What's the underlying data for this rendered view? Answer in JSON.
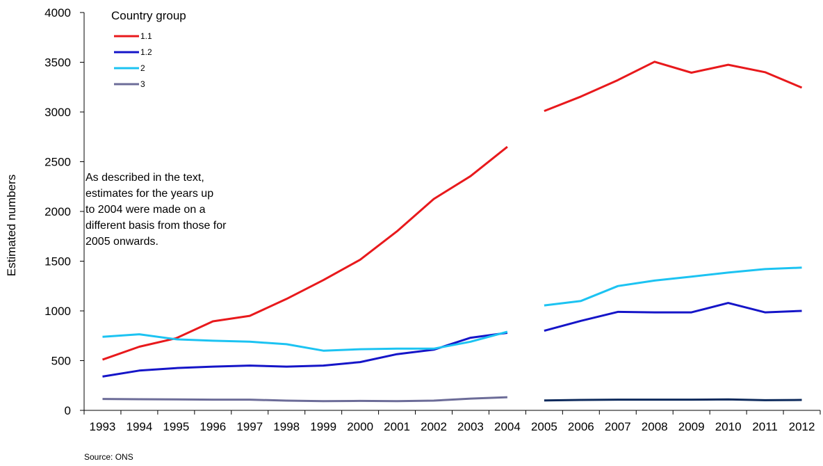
{
  "chart_data": {
    "type": "line",
    "title": "",
    "xlabel": "",
    "ylabel": "Estimated numbers",
    "ylim": [
      0,
      4000
    ],
    "yticks": [
      0,
      500,
      1000,
      1500,
      2000,
      2500,
      3000,
      3500,
      4000
    ],
    "categories": [
      "1993",
      "1994",
      "1995",
      "1996",
      "1997",
      "1998",
      "1999",
      "2000",
      "2001",
      "2002",
      "2003",
      "2004",
      "2005",
      "2006",
      "2007",
      "2008",
      "2009",
      "2010",
      "2011",
      "2012"
    ],
    "grid": false,
    "legend": {
      "title": "Country group",
      "position": "top-left"
    },
    "series": [
      {
        "name": "1.1",
        "color": "#e8191c",
        "segments": [
          {
            "start": 0,
            "values": [
              510,
              640,
              725,
              895,
              950,
              1120,
              1310,
              1515,
              1800,
              2125,
              2355,
              2650
            ]
          },
          {
            "start": 12,
            "values": [
              3010,
              3155,
              3320,
              3505,
              3395,
              3475,
              3400,
              3245
            ]
          }
        ]
      },
      {
        "name": "1.2",
        "color": "#1515c8",
        "segments": [
          {
            "start": 0,
            "values": [
              340,
              400,
              425,
              440,
              450,
              440,
              450,
              485,
              565,
              610,
              730,
              780
            ]
          },
          {
            "start": 12,
            "values": [
              800,
              900,
              990,
              985,
              985,
              1080,
              985,
              1000
            ]
          }
        ]
      },
      {
        "name": "2",
        "color": "#1cc3f2",
        "segments": [
          {
            "start": 0,
            "values": [
              740,
              765,
              715,
              700,
              690,
              665,
              600,
              615,
              620,
              620,
              690,
              790
            ]
          },
          {
            "start": 12,
            "values": [
              1055,
              1100,
              1250,
              1305,
              1345,
              1385,
              1420,
              1435
            ]
          }
        ]
      },
      {
        "name": "3",
        "color": "#6c6c98",
        "segments": [
          {
            "start": 0,
            "values": [
              115,
              112,
              110,
              108,
              108,
              98,
              92,
              95,
              92,
              98,
              118,
              132
            ]
          },
          {
            "start": 12,
            "values": [
              100,
              105,
              108,
              108,
              108,
              110,
              102,
              105
            ],
            "color": "#0d2a5c"
          }
        ]
      }
    ],
    "annotation": [
      "As described in the text,",
      "estimates for the years up",
      "to 2004 were made on a",
      "different basis from those for",
      "2005 onwards."
    ],
    "source": "Source: ONS"
  }
}
